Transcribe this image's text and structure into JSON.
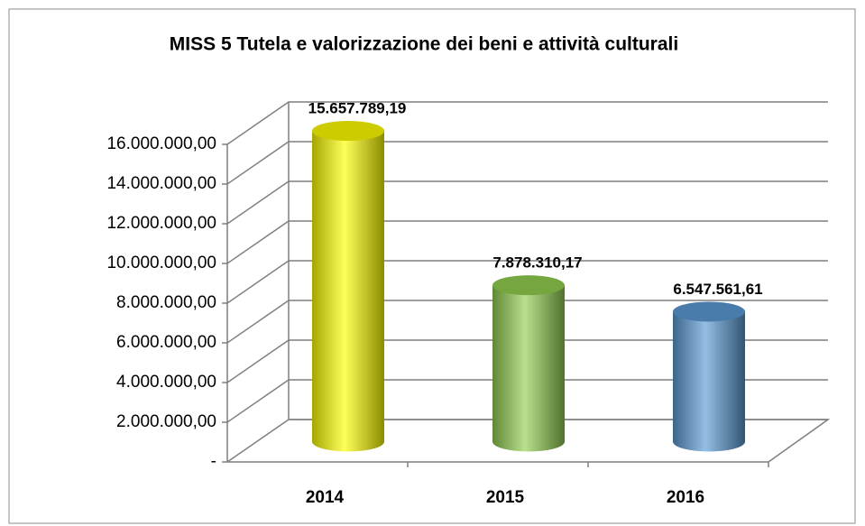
{
  "chart_data": {
    "type": "bar3d",
    "title": "MISS 5 Tutela e valorizzazione dei beni e attività culturali",
    "categories": [
      "2014",
      "2015",
      "2016"
    ],
    "values": [
      15657789.19,
      7878310.17,
      6547561.61
    ],
    "value_labels": [
      "15.657.789,19",
      "7.878.310,17",
      "6.547.561,61"
    ],
    "colors": [
      "#ffff00",
      "#92d050",
      "#5b9bd5"
    ],
    "ylim": [
      0,
      16000000
    ],
    "yticks": [
      {
        "value": 0,
        "label": "-"
      },
      {
        "value": 2000000,
        "label": "2.000.000,00"
      },
      {
        "value": 4000000,
        "label": "4.000.000,00"
      },
      {
        "value": 6000000,
        "label": "6.000.000,00"
      },
      {
        "value": 8000000,
        "label": "8.000.000,00"
      },
      {
        "value": 10000000,
        "label": "10.000.000,00"
      },
      {
        "value": 12000000,
        "label": "12.000.000,00"
      },
      {
        "value": 14000000,
        "label": "14.000.000,00"
      },
      {
        "value": 16000000,
        "label": "16.000.000,00"
      }
    ],
    "grid": true
  }
}
